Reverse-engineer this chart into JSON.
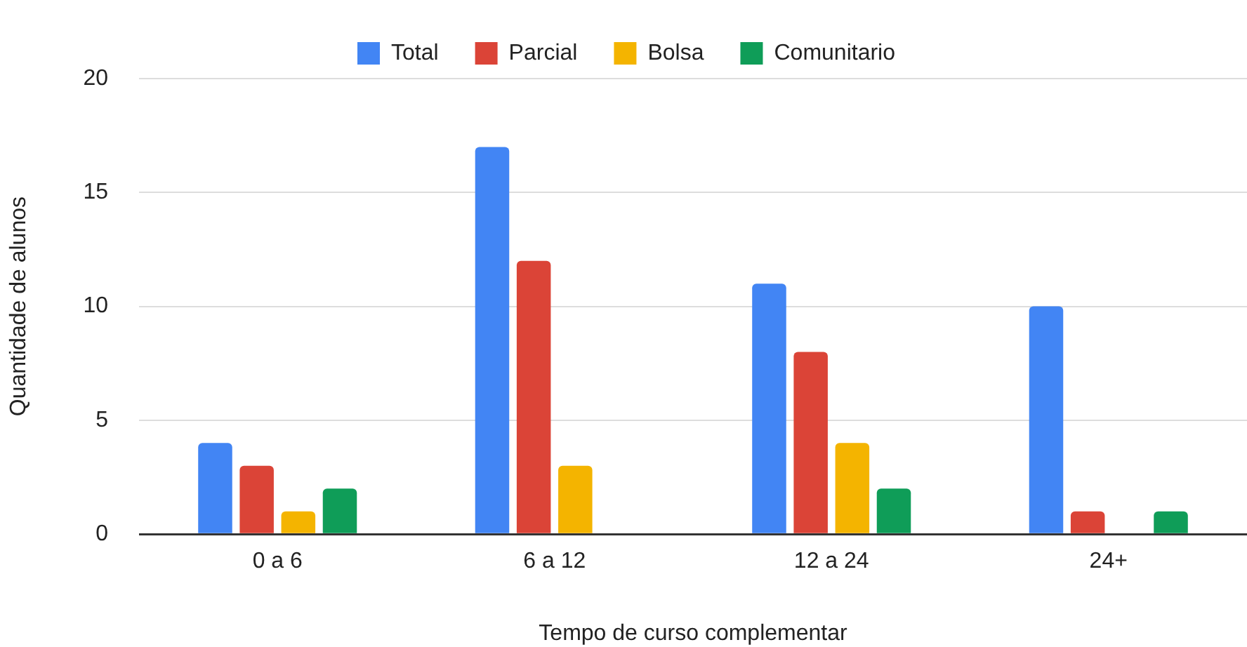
{
  "chart_data": {
    "type": "bar",
    "xlabel": "Tempo de curso complementar",
    "ylabel": "Quantidade de alunos",
    "categories": [
      "0 a 6",
      "6 a 12",
      "12 a 24",
      "24+"
    ],
    "series": [
      {
        "name": "Total",
        "color": "#4285f4",
        "values": [
          4,
          17,
          11,
          10
        ]
      },
      {
        "name": "Parcial",
        "color": "#db4437",
        "values": [
          3,
          12,
          8,
          1
        ]
      },
      {
        "name": "Bolsa",
        "color": "#f4b400",
        "values": [
          1,
          3,
          4,
          0
        ]
      },
      {
        "name": "Comunitario",
        "color": "#0f9d58",
        "values": [
          2,
          0,
          2,
          1
        ]
      }
    ],
    "ylim": [
      0,
      20
    ],
    "yticks": [
      0,
      5,
      10,
      15,
      20
    ],
    "grid": "y",
    "legend": "top"
  }
}
